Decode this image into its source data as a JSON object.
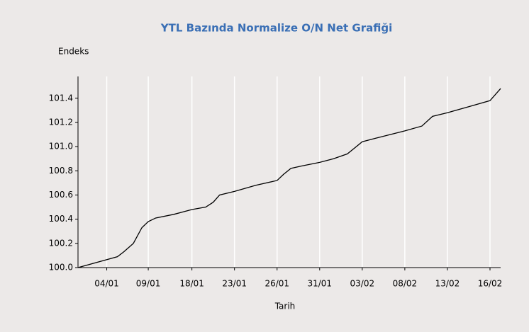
{
  "chart_data": {
    "type": "line",
    "title": "YTL Bazında  Normalize  O/N Net Grafiği",
    "y_label": "Endeks",
    "x_label": "Tarih",
    "x": [
      0,
      3.7,
      4.3,
      5.2,
      6,
      6.6,
      7.3,
      9,
      10.7,
      12,
      12.7,
      13.3,
      14.7,
      16.7,
      18.7,
      19.3,
      20,
      21,
      22.7,
      24,
      25.3,
      26,
      26.7,
      28,
      30.7,
      32.3,
      33.3,
      34.7,
      36.7,
      38.7,
      39.7
    ],
    "series": [
      {
        "name": "Endeks",
        "color": "#000000",
        "values": [
          100.0,
          100.09,
          100.13,
          100.2,
          100.33,
          100.38,
          100.41,
          100.44,
          100.48,
          100.5,
          100.54,
          100.6,
          100.63,
          100.68,
          100.72,
          100.77,
          100.82,
          100.84,
          100.87,
          100.9,
          100.94,
          100.99,
          101.04,
          101.07,
          101.13,
          101.17,
          101.25,
          101.28,
          101.33,
          101.38,
          101.48
        ]
      }
    ],
    "xlim": [
      0,
      39.7
    ],
    "xticks": [
      {
        "value": 2.7,
        "label": "04/01"
      },
      {
        "value": 6.6,
        "label": "09/01"
      },
      {
        "value": 10.7,
        "label": "18/01"
      },
      {
        "value": 14.7,
        "label": "23/01"
      },
      {
        "value": 18.7,
        "label": "26/01"
      },
      {
        "value": 22.7,
        "label": "31/01"
      },
      {
        "value": 26.7,
        "label": "03/02"
      },
      {
        "value": 30.7,
        "label": "08/02"
      },
      {
        "value": 34.7,
        "label": "13/02"
      },
      {
        "value": 38.7,
        "label": "16/02"
      }
    ],
    "ylim": [
      100.0,
      101.58
    ],
    "yticks": [
      {
        "value": 100.0,
        "label": "100.0"
      },
      {
        "value": 100.2,
        "label": "100.2"
      },
      {
        "value": 100.4,
        "label": "100.4"
      },
      {
        "value": 100.6,
        "label": "100.6"
      },
      {
        "value": 100.8,
        "label": "100.8"
      },
      {
        "value": 101.0,
        "label": "101.0"
      },
      {
        "value": 101.2,
        "label": "101.2"
      },
      {
        "value": 101.4,
        "label": "101.4"
      }
    ],
    "grid": true
  }
}
